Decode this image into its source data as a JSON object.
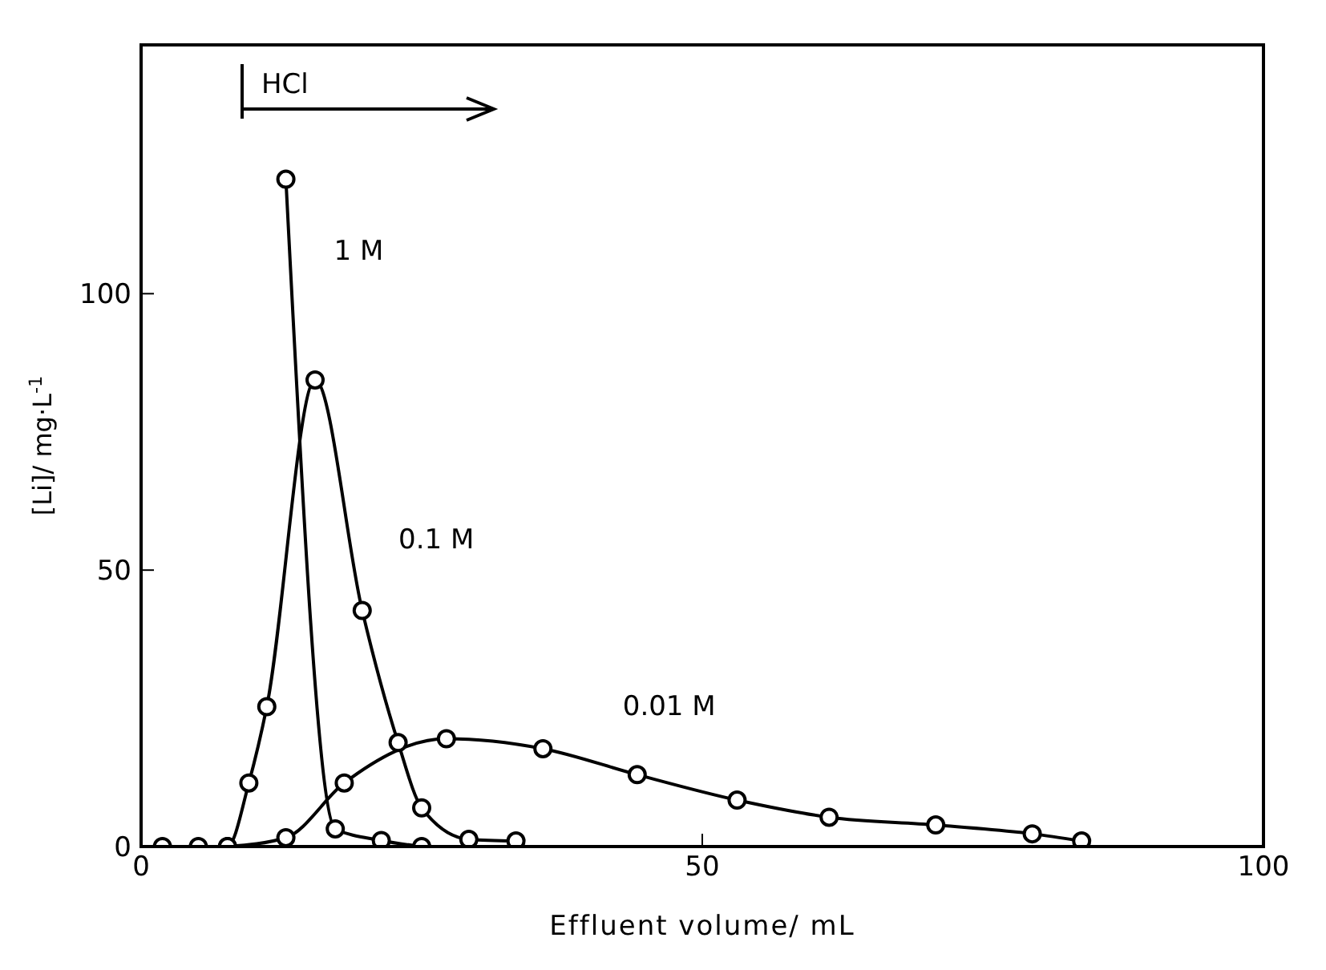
{
  "chart_data": {
    "type": "line",
    "xlabel": "Effluent volume/ mL",
    "ylabel": "[Li]/ mg·L$^{-1}$",
    "xlim": [
      0,
      100
    ],
    "xticks": [
      0,
      50,
      100
    ],
    "ylim": [
      0,
      145
    ],
    "yticks": [
      0,
      50,
      100
    ],
    "grid": false,
    "legend": false,
    "marker": "circle",
    "line_style": "solid",
    "series": [
      {
        "name": "1 M",
        "color": "#000000",
        "x": [
          12.9,
          17.3,
          21.4,
          25.0
        ],
        "values": [
          120.7,
          3.2,
          1.1,
          0
        ]
      },
      {
        "name": "0.1 M",
        "color": "#000000",
        "x": [
          1.9,
          5.1,
          7.7,
          9.6,
          11.2,
          15.5,
          19.7,
          22.9,
          25.0,
          29.2,
          33.4
        ],
        "values": [
          0,
          0,
          0,
          11.5,
          25.3,
          84.4,
          42.7,
          18.8,
          7.0,
          1.3,
          1.0
        ]
      },
      {
        "name": "0.01 M",
        "color": "#000000",
        "x": [
          7.7,
          12.9,
          18.1,
          23.0,
          27.2,
          35.8,
          44.2,
          53.1,
          61.3,
          70.8,
          79.4,
          83.8
        ],
        "values": [
          0,
          1.6,
          11.5,
          null,
          19.5,
          17.7,
          13.0,
          8.4,
          5.3,
          3.9,
          2.3,
          1.0
        ]
      }
    ],
    "ref_lines": [
      {
        "axis": "x",
        "value": 9,
        "label": "HCl"
      }
    ]
  }
}
